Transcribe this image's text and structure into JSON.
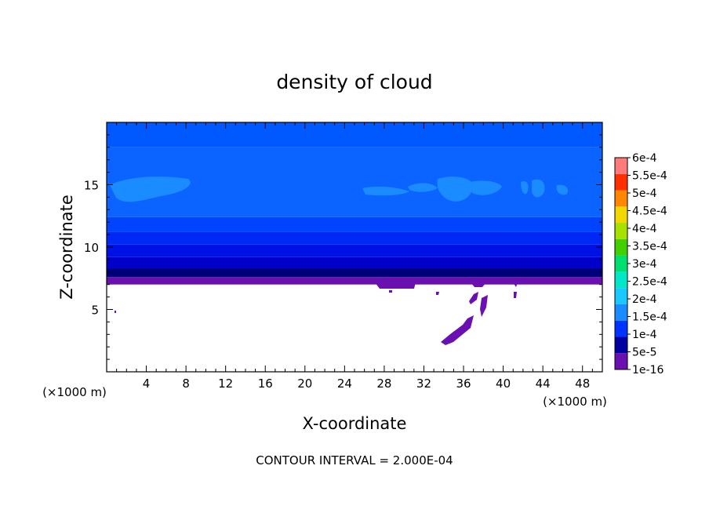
{
  "chart_data": {
    "type": "heatmap",
    "title": "density of cloud",
    "xlabel": "X-coordinate",
    "ylabel": "Z-coordinate",
    "x_unit": "(×1000 m)",
    "y_unit": "(×1000 m)",
    "xlim": [
      0,
      50
    ],
    "ylim": [
      0,
      20
    ],
    "x_ticks": [
      4,
      8,
      12,
      16,
      20,
      24,
      28,
      32,
      36,
      40,
      44,
      48
    ],
    "y_ticks": [
      5,
      10,
      15
    ],
    "grid": false,
    "colorbar": {
      "placement": "right",
      "tick_labels": [
        "1e-16",
        "5e-5",
        "1e-4",
        "1.5e-4",
        "2e-4",
        "2.5e-4",
        "3e-4",
        "3.5e-4",
        "4e-4",
        "4.5e-4",
        "5e-4",
        "5.5e-4",
        "6e-4"
      ],
      "levels": [
        1e-16,
        5e-05,
        0.0001,
        0.00015,
        0.0002,
        0.00025,
        0.0003,
        0.00035,
        0.0004,
        0.00045,
        0.0005,
        0.00055,
        0.0006
      ],
      "colors": [
        "#6a0fb0",
        "#0000a0",
        "#0033ff",
        "#1a8cff",
        "#1ac8ff",
        "#00e8c8",
        "#00e070",
        "#44d000",
        "#a8e000",
        "#f0d800",
        "#ff8800",
        "#ff3000",
        "#ff7a7a"
      ]
    },
    "layers": [
      {
        "z_from": 7.0,
        "z_to": 7.6,
        "color": "#6a0fb0"
      },
      {
        "z_from": 7.6,
        "z_to": 8.3,
        "color": "#00007a"
      },
      {
        "z_from": 8.3,
        "z_to": 9.2,
        "color": "#0000c8"
      },
      {
        "z_from": 9.2,
        "z_to": 10.2,
        "color": "#0011e6"
      },
      {
        "z_from": 10.2,
        "z_to": 11.2,
        "color": "#0028f5"
      },
      {
        "z_from": 11.2,
        "z_to": 12.4,
        "color": "#0044ff"
      },
      {
        "z_from": 12.4,
        "z_to": 18.0,
        "color": "#0b64ff"
      },
      {
        "z_from": 18.0,
        "z_to": 20.0,
        "color": "#0058ff"
      }
    ],
    "annotation": "CONTOUR INTERVAL = 2.000E-04"
  }
}
